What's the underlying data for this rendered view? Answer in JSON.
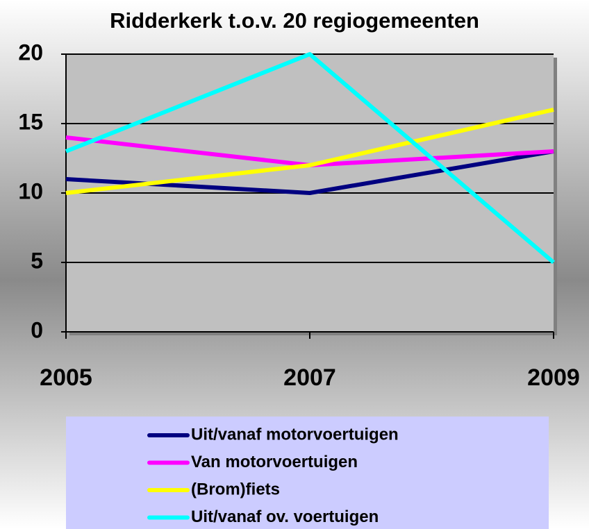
{
  "chart_data": {
    "type": "line",
    "title": "Ridderkerk t.o.v. 20 regiogemeenten",
    "categories": [
      "2005",
      "2007",
      "2009"
    ],
    "series": [
      {
        "name": "Uit/vanaf motorvoertuigen",
        "color": "#000080",
        "values": [
          11,
          10,
          13
        ]
      },
      {
        "name": "Van motorvoertuigen",
        "color": "#ff00ff",
        "values": [
          14,
          12,
          13
        ]
      },
      {
        "name": "(Brom)fiets",
        "color": "#ffff00",
        "values": [
          10,
          12,
          16
        ]
      },
      {
        "name": "Uit/vanaf ov. voertuigen",
        "color": "#00ffff",
        "values": [
          13,
          20,
          5
        ]
      }
    ],
    "ylim": [
      0,
      20
    ],
    "yticks": [
      0,
      5,
      10,
      15,
      20
    ],
    "grid": true,
    "legend": "bottom"
  }
}
